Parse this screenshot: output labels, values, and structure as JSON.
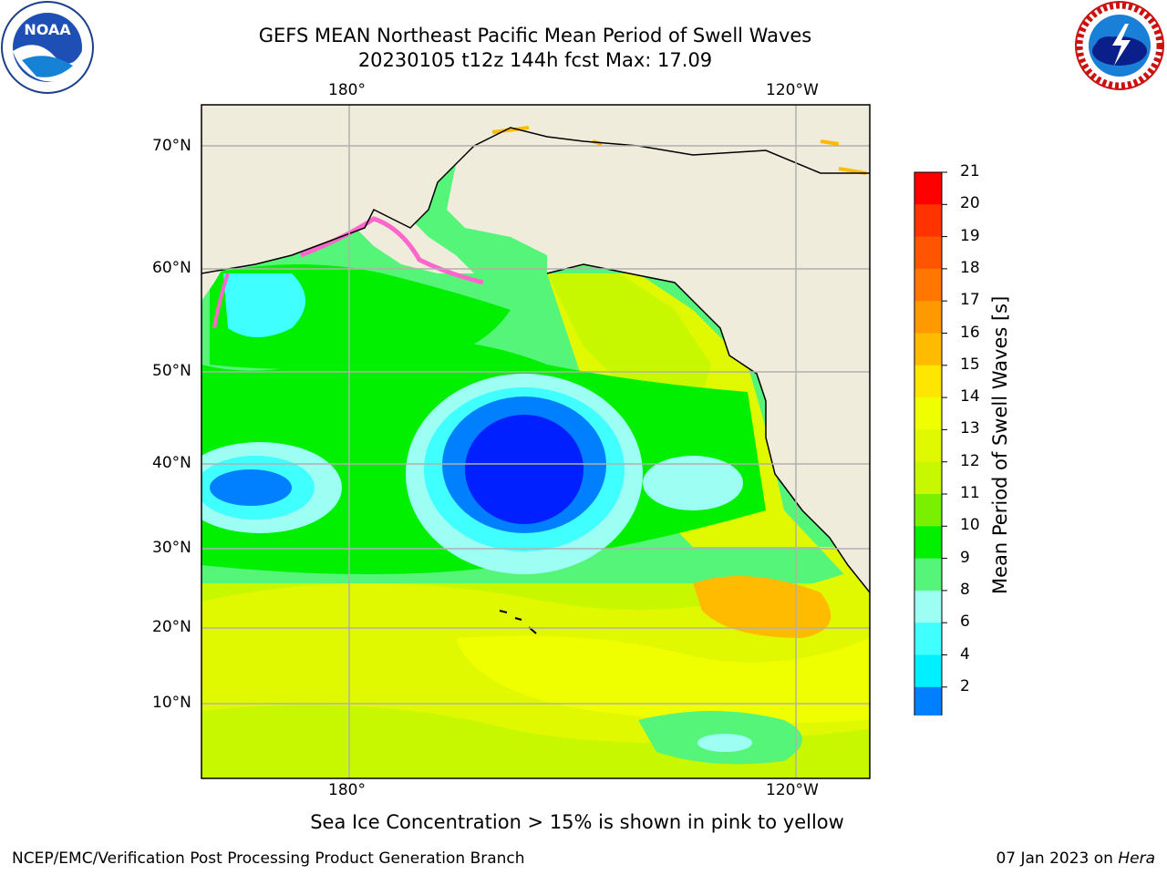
{
  "header": {
    "title_line1": "GEFS MEAN Northeast Pacific Mean Period of Swell Waves",
    "title_line2": "20230105 t12z 144h fcst   Max: 17.09"
  },
  "logos": {
    "left": {
      "name": "noaa-logo",
      "text": "NOAA"
    },
    "right": {
      "name": "nws-logo",
      "text": "NATIONAL WEATHER SERVICE"
    }
  },
  "map": {
    "lon_ticks_top": [
      "180°",
      "120°W"
    ],
    "lon_ticks_bottom": [
      "180°",
      "120°W"
    ],
    "lat_ticks": [
      "70°N",
      "60°N",
      "50°N",
      "40°N",
      "30°N",
      "20°N",
      "10°N"
    ],
    "colors": {
      "land": "#efecdc",
      "coast": "#000000",
      "grid": "#b0b0b0"
    }
  },
  "colorbar": {
    "label": "Mean Period of Swell Waves [s]",
    "ticks": [
      "21",
      "20",
      "19",
      "18",
      "17",
      "16",
      "15",
      "14",
      "13",
      "12",
      "11",
      "10",
      "9",
      "8",
      "6",
      "4",
      "2"
    ],
    "colors": [
      "#ff0000",
      "#ff3300",
      "#ff5500",
      "#ff7700",
      "#ff9900",
      "#ffbb00",
      "#ffe600",
      "#f0ff00",
      "#e0f800",
      "#c8f800",
      "#78f000",
      "#00f000",
      "#55f57a",
      "#9dfff3",
      "#40ffff",
      "#00f0ff",
      "#0080ff",
      "#0020ff"
    ]
  },
  "caption": "Sea Ice Concentration > 15% is shown in pink to yellow",
  "footer": {
    "left": "NCEP/EMC/Verification Post Processing Product Generation Branch",
    "right_date": "07 Jan 2023 on ",
    "right_machine": "Hera"
  }
}
